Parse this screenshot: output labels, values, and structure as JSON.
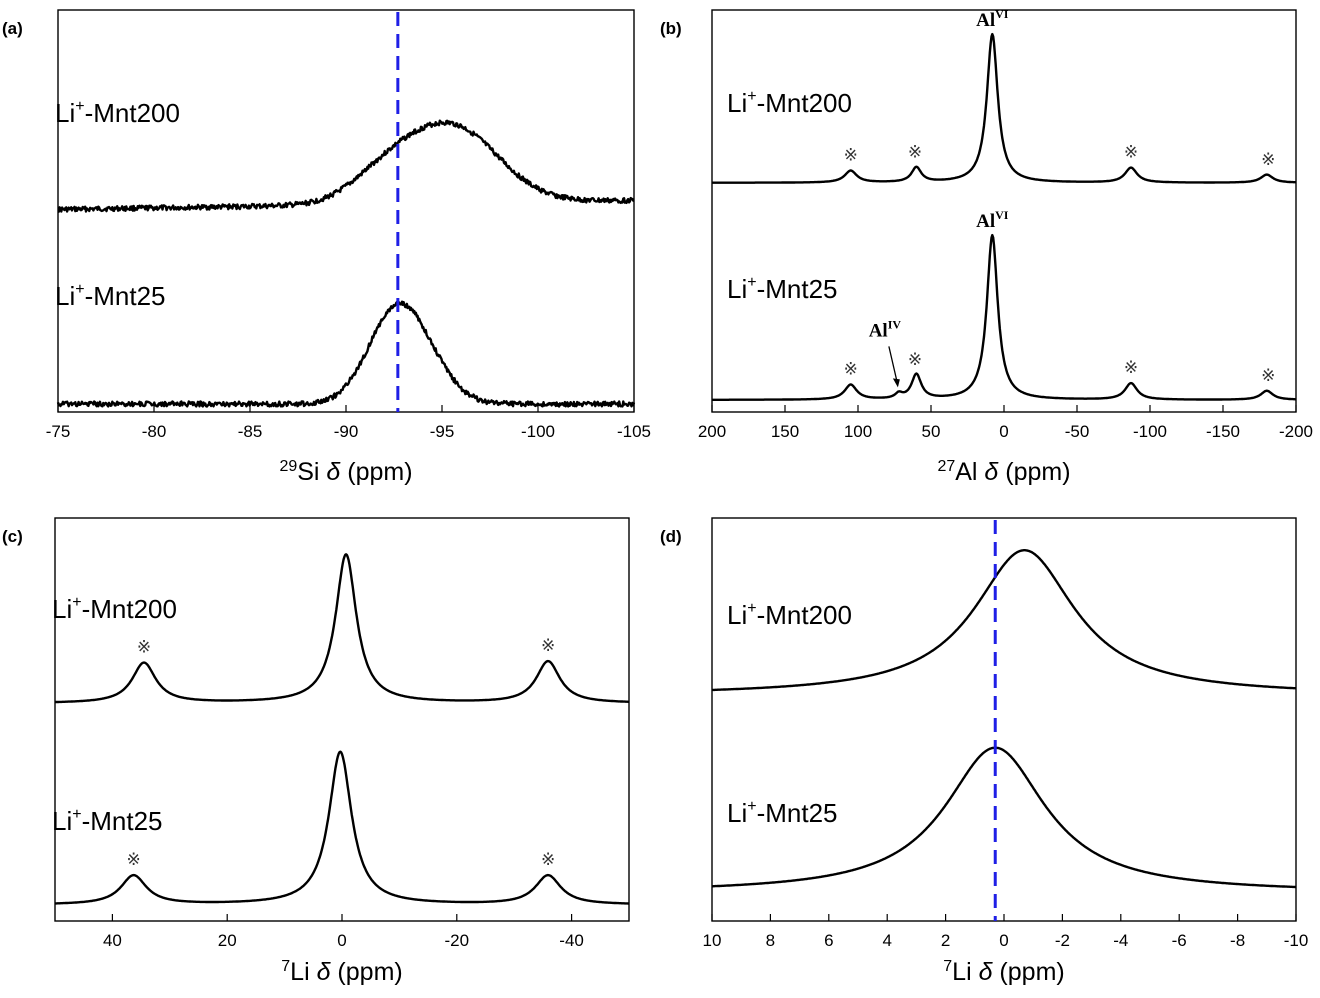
{
  "figure": {
    "panel_labels": [
      "(a)",
      "(b)",
      "(c)",
      "(d)"
    ],
    "sideband_symbol": "※"
  },
  "chart_data": [
    {
      "panel": "(a)",
      "type": "line",
      "xlabel": {
        "superscript": "29",
        "nucleus": "Si",
        "symbol": "δ",
        "unit": "(ppm)"
      },
      "xlim": [
        -75,
        -105
      ],
      "xticks": [
        -75,
        -80,
        -85,
        -90,
        -95,
        -100,
        -105
      ],
      "reference_line": {
        "x": -92.7,
        "color": "#1f1fe6",
        "style": "dashed"
      },
      "series": [
        {
          "name": "Li+-Mnt200",
          "label_main": "Li",
          "label_sup": "+",
          "label_rest": "-Mnt200",
          "baseline": 0.62,
          "noise": 0.006,
          "peaks": [
            {
              "center": -95.5,
              "width": 2.4,
              "height": 1.0,
              "shape": "gauss"
            },
            {
              "center": -92.0,
              "width": 1.8,
              "height": 0.32,
              "shape": "gauss"
            }
          ],
          "slope": 0.0025,
          "sidebands": []
        },
        {
          "name": "Li+-Mnt25",
          "label_main": "Li",
          "label_sup": "+",
          "label_rest": "-Mnt25",
          "baseline": 0.04,
          "noise": 0.006,
          "peaks": [
            {
              "center": -92.3,
              "width": 1.4,
              "height": 0.73,
              "shape": "gauss"
            },
            {
              "center": -93.6,
              "width": 1.5,
              "height": 0.62,
              "shape": "gauss"
            }
          ],
          "slope": 0.0,
          "sidebands": []
        }
      ],
      "yoffsets": [
        0.0,
        0.0
      ],
      "label_positions": [
        "upper",
        "lower"
      ]
    },
    {
      "panel": "(b)",
      "type": "line",
      "xlabel": {
        "superscript": "27",
        "nucleus": "Al",
        "symbol": "δ",
        "unit": "(ppm)"
      },
      "xlim": [
        200,
        -200
      ],
      "xticks": [
        200,
        150,
        100,
        50,
        0,
        -50,
        -100,
        -150,
        -200
      ],
      "reference_line": null,
      "series": [
        {
          "name": "Li+-Mnt200",
          "label_main": "Li",
          "label_sup": "+",
          "label_rest": "-Mnt200",
          "baseline": 0.0,
          "noise": 0.0,
          "peaks": [
            {
              "center": 8,
              "width": 4.5,
              "height": 1.0,
              "shape": "lorentz"
            },
            {
              "center": 105,
              "width": 5,
              "height": 0.08,
              "shape": "lorentz"
            },
            {
              "center": 60,
              "width": 4,
              "height": 0.1,
              "shape": "lorentz"
            },
            {
              "center": -87,
              "width": 5,
              "height": 0.1,
              "shape": "lorentz"
            },
            {
              "center": -180,
              "width": 5,
              "height": 0.055,
              "shape": "lorentz"
            }
          ],
          "sidebands": [
            105,
            61,
            -87,
            -181
          ],
          "peak_labels": [
            {
              "x": 8,
              "main": "Al",
              "sup": "VI"
            }
          ]
        },
        {
          "name": "Li+-Mnt25",
          "label_main": "Li",
          "label_sup": "+",
          "label_rest": "-Mnt25",
          "baseline": 0.0,
          "noise": 0.0,
          "peaks": [
            {
              "center": 8,
              "width": 4.5,
              "height": 1.0,
              "shape": "lorentz"
            },
            {
              "center": 105,
              "width": 5,
              "height": 0.09,
              "shape": "lorentz"
            },
            {
              "center": 60,
              "width": 4,
              "height": 0.15,
              "shape": "lorentz"
            },
            {
              "center": 72,
              "width": 3,
              "height": 0.03,
              "shape": "lorentz"
            },
            {
              "center": -87,
              "width": 5,
              "height": 0.1,
              "shape": "lorentz"
            },
            {
              "center": -180,
              "width": 5,
              "height": 0.055,
              "shape": "lorentz"
            }
          ],
          "sidebands": [
            105,
            61,
            -87,
            -181
          ],
          "peak_labels": [
            {
              "x": 8,
              "main": "Al",
              "sup": "VI"
            }
          ],
          "arrow_label": {
            "x": 72,
            "main": "Al",
            "sup": "IV"
          }
        }
      ]
    },
    {
      "panel": "(c)",
      "type": "line",
      "xlabel": {
        "superscript": "7",
        "nucleus": "Li",
        "symbol": "δ",
        "unit": "(ppm)"
      },
      "xlim": [
        50,
        -50
      ],
      "xticks": [
        40,
        20,
        0,
        -20,
        -40
      ],
      "reference_line": null,
      "series": [
        {
          "name": "Li+-Mnt200",
          "label_main": "Li",
          "label_sup": "+",
          "label_rest": "-Mnt200",
          "baseline": 0.0,
          "noise": 0.0,
          "peaks": [
            {
              "center": -0.7,
              "width": 2.2,
              "height": 1.0,
              "shape": "lorentz"
            },
            {
              "center": 34.5,
              "width": 2.5,
              "height": 0.27,
              "shape": "lorentz"
            },
            {
              "center": -35.9,
              "width": 2.5,
              "height": 0.28,
              "shape": "lorentz"
            }
          ],
          "sidebands": [
            34.5,
            -35.9
          ]
        },
        {
          "name": "Li+-Mnt25",
          "label_main": "Li",
          "label_sup": "+",
          "label_rest": "-Mnt25",
          "baseline": 0.0,
          "noise": 0.0,
          "peaks": [
            {
              "center": 0.3,
              "width": 2.4,
              "height": 1.0,
              "shape": "lorentz"
            },
            {
              "center": 36.3,
              "width": 2.7,
              "height": 0.19,
              "shape": "lorentz"
            },
            {
              "center": -35.9,
              "width": 2.7,
              "height": 0.19,
              "shape": "lorentz"
            }
          ],
          "sidebands": [
            36.3,
            -35.9
          ]
        }
      ]
    },
    {
      "panel": "(d)",
      "type": "line",
      "xlabel": {
        "superscript": "7",
        "nucleus": "Li",
        "symbol": "δ",
        "unit": "(ppm)"
      },
      "xlim": [
        10,
        -10
      ],
      "xticks": [
        10,
        8,
        6,
        4,
        2,
        0,
        -2,
        -4,
        -6,
        -8,
        -10
      ],
      "reference_line": {
        "x": 0.3,
        "color": "#1f1fe6",
        "style": "dashed"
      },
      "series": [
        {
          "name": "Li+-Mnt200",
          "label_main": "Li",
          "label_sup": "+",
          "label_rest": "-Mnt200",
          "baseline": 0.0,
          "noise": 0.0,
          "peaks": [
            {
              "center": -0.7,
              "width": 2.1,
              "height": 1.0,
              "shape": "lorentz"
            }
          ],
          "sidebands": []
        },
        {
          "name": "Li+-Mnt25",
          "label_main": "Li",
          "label_sup": "+",
          "label_rest": "-Mnt25",
          "baseline": 0.0,
          "noise": 0.0,
          "peaks": [
            {
              "center": 0.3,
              "width": 2.1,
              "height": 1.0,
              "shape": "lorentz"
            }
          ],
          "sidebands": []
        }
      ]
    }
  ]
}
